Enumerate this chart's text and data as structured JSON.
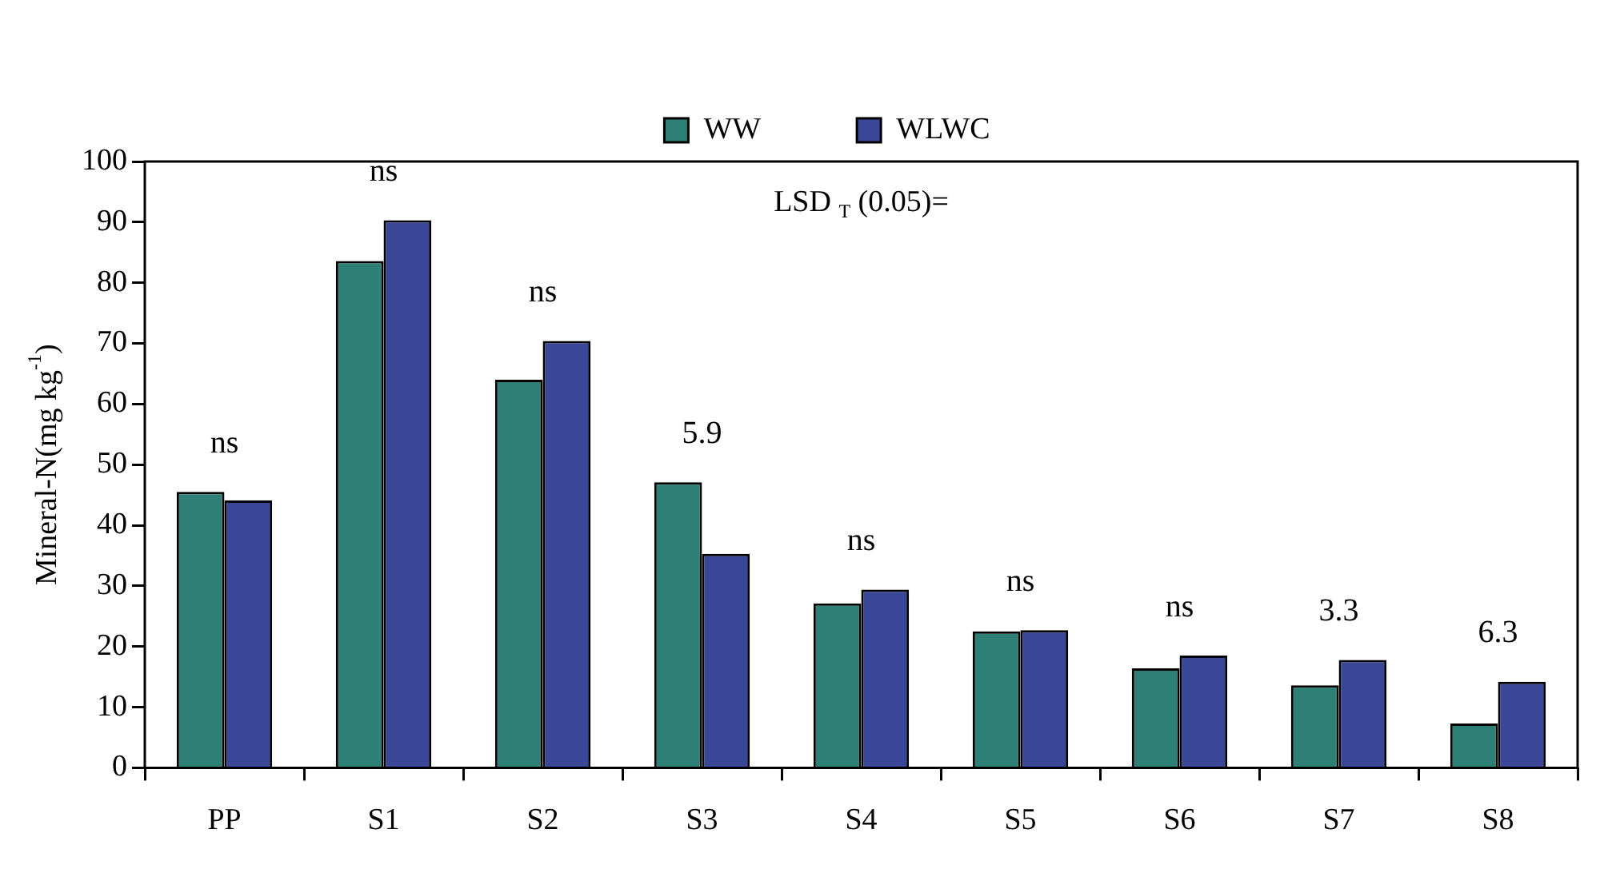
{
  "chart_data": {
    "type": "bar",
    "ylabel": "Mineral-N(mg kg$^{-1}$)",
    "categories": [
      "PP",
      "S1",
      "S2",
      "S3",
      "S4",
      "S5",
      "S6",
      "S7",
      "S8"
    ],
    "series": [
      {
        "name": "WW",
        "color": "#2e8077",
        "values": [
          45.5,
          83.6,
          64.0,
          47.1,
          27.1,
          22.5,
          16.4,
          13.6,
          7.3
        ]
      },
      {
        "name": "WLWC",
        "color": "#3a4799",
        "values": [
          44.1,
          90.3,
          70.4,
          35.3,
          29.4,
          22.7,
          18.5,
          17.8,
          14.2
        ]
      }
    ],
    "ylim": [
      0,
      100
    ],
    "yticks": [
      0,
      10,
      20,
      30,
      40,
      50,
      60,
      70,
      80,
      90,
      100
    ],
    "grid": false,
    "legend": "top",
    "annotations": [
      "LSD $_{T}$ (0.05)=",
      "ns",
      "ns",
      "ns",
      "5.9",
      "ns",
      "ns",
      "ns",
      "3.3",
      "6.3"
    ]
  }
}
